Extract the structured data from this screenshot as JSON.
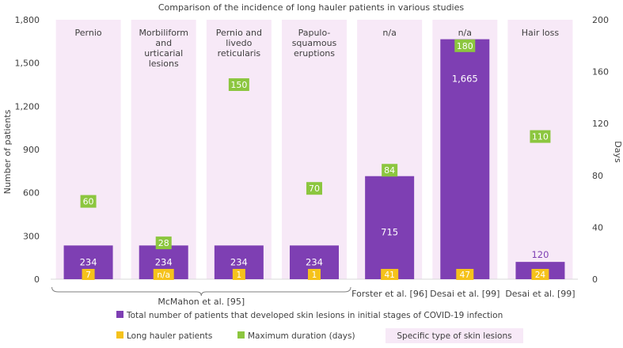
{
  "chart_data": {
    "type": "bar",
    "title": "Comparison of the incidence of long hauler patients in various studies",
    "ylabel": "Number of patients",
    "y2label": "Days",
    "ylim": [
      0,
      1800
    ],
    "y2lim": [
      0,
      200
    ],
    "yticks": [
      "0",
      "300",
      "600",
      "900",
      "1,200",
      "1,500",
      "1,800"
    ],
    "y2ticks": [
      "0",
      "40",
      "80",
      "120",
      "160",
      "200"
    ],
    "skin_lesions": [
      "Pernio",
      "Morbiliform and urticarial lesions",
      "Pernio and livedo reticularis",
      "Papulo-squamous eruptions",
      "n/a",
      "n/a",
      "Hair loss"
    ],
    "series": [
      {
        "name": "Total number of patients that developed skin lesions in initial stages of COVID-19 infection",
        "color": "#7e3fb3",
        "values": [
          234,
          234,
          234,
          234,
          715,
          1665,
          120
        ],
        "labels": [
          "234",
          "234",
          "234",
          "234",
          "715",
          "1,665",
          "120"
        ]
      },
      {
        "name": "Long hauler patients",
        "color": "#f5c21b",
        "values": [
          7,
          null,
          1,
          1,
          41,
          47,
          24
        ],
        "labels": [
          "7",
          "n/a",
          "1",
          "1",
          "41",
          "47",
          "24"
        ]
      },
      {
        "name": "Maximum duration (days)",
        "color": "#8cc63f",
        "values": [
          60,
          28,
          150,
          70,
          84,
          180,
          110
        ],
        "labels": [
          "60",
          "28",
          "150",
          "70",
          "84",
          "180",
          "110"
        ]
      }
    ],
    "study_groups": [
      {
        "label": "McMahon et al. [95]",
        "span": [
          0,
          3
        ]
      },
      {
        "label": "Forster et al. [96]",
        "span": [
          4,
          4
        ]
      },
      {
        "label": "Desai et al. [99]",
        "span": [
          5,
          5
        ]
      },
      {
        "label": "Desai et al. [99]",
        "span": [
          6,
          6
        ]
      }
    ],
    "legend": {
      "total": "Total number of patients that developed skin lesions in initial stages of COVID-19 infection",
      "long_hauler": "Long hauler patients",
      "max_duration": "Maximum duration (days)",
      "skin_type": "Specific type of skin lesions"
    },
    "colors": {
      "total": "#7e3fb3",
      "long_hauler": "#f5c21b",
      "max_duration": "#8cc63f",
      "band": "#f7e9f7",
      "axis": "#595959"
    }
  }
}
